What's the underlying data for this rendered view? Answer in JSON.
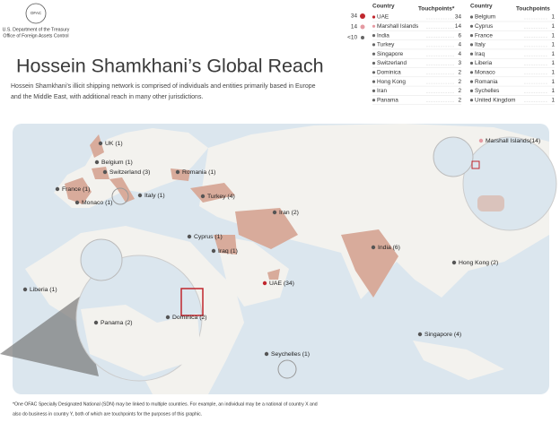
{
  "header": {
    "seal": "OFAC",
    "agency": [
      "U.S. Department of the Treasury",
      "Office of Foreign Assets Control"
    ],
    "title": "Hossein Shamkhani’s Global Reach",
    "description": [
      "Hossein Shamkhani’s illicit shipping network is comprised of individuals and entities primarily based in Europe",
      "and the Middle East, with additional reach in many other jurisdictions."
    ]
  },
  "legend": [
    "34",
    "14",
    "<10"
  ],
  "table_left": {
    "headers": [
      "Country",
      "Touchpoints*"
    ],
    "rows": [
      [
        "UAE",
        34
      ],
      [
        "Marshall Islands",
        14
      ],
      [
        "India",
        6
      ],
      [
        "Turkey",
        4
      ],
      [
        "Singapore",
        4
      ],
      [
        "Switzerland",
        3
      ],
      [
        "Dominica",
        2
      ],
      [
        "Hong Kong",
        2
      ],
      [
        "Iran",
        2
      ],
      [
        "Panama",
        2
      ]
    ]
  },
  "table_right": {
    "headers": [
      "Country",
      "Touchpoints"
    ],
    "rows": [
      [
        "Belgium",
        1
      ],
      [
        "Cyprus",
        1
      ],
      [
        "France",
        1
      ],
      [
        "Italy",
        1
      ],
      [
        "Iraq",
        1
      ],
      [
        "Liberia",
        1
      ],
      [
        "Monaco",
        1
      ],
      [
        "Romania",
        1
      ],
      [
        "Sychelles",
        1
      ],
      [
        "United Kingdom",
        1
      ]
    ]
  },
  "map_labels": [
    "UK (1)",
    "Belgium (1)",
    "Switzerland (3)",
    "Romania (1)",
    "France (1)",
    "Monaco (1)",
    "Italy (1)",
    "Turkey (4)",
    "Iran (2)",
    "Cyprus (1)",
    "Iraq (1)",
    "India (6)",
    "UAE (34)",
    "Hong Kong (2)",
    "Liberia (1)",
    "Panama (2)",
    "Dominica (2)",
    "Seychelles (1)",
    "Singapore (4)",
    "Marshall Islands(14)"
  ],
  "footnote": [
    "*One OFAC Specially Designated National (SDN) may be linked to multiple countries. For example, an individual may be a national of country X and",
    "also do business in country Y, both of which are touchpoints for the purposes of this graphic."
  ]
}
